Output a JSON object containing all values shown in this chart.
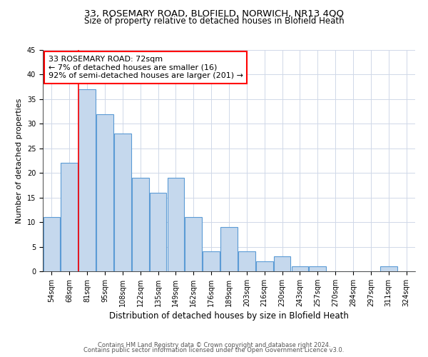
{
  "title1": "33, ROSEMARY ROAD, BLOFIELD, NORWICH, NR13 4QQ",
  "title2": "Size of property relative to detached houses in Blofield Heath",
  "xlabel": "Distribution of detached houses by size in Blofield Heath",
  "ylabel": "Number of detached properties",
  "categories": [
    "54sqm",
    "68sqm",
    "81sqm",
    "95sqm",
    "108sqm",
    "122sqm",
    "135sqm",
    "149sqm",
    "162sqm",
    "176sqm",
    "189sqm",
    "203sqm",
    "216sqm",
    "230sqm",
    "243sqm",
    "257sqm",
    "270sqm",
    "284sqm",
    "297sqm",
    "311sqm",
    "324sqm"
  ],
  "values": [
    11,
    22,
    37,
    32,
    28,
    19,
    16,
    19,
    11,
    4,
    9,
    4,
    2,
    3,
    1,
    1,
    0,
    0,
    0,
    1,
    0
  ],
  "bar_color": "#c5d8ed",
  "bar_edge_color": "#5b9bd5",
  "annotation_text_line1": "33 ROSEMARY ROAD: 72sqm",
  "annotation_text_line2": "← 7% of detached houses are smaller (16)",
  "annotation_text_line3": "92% of semi-detached houses are larger (201) →",
  "annotation_box_color": "white",
  "annotation_box_edge": "red",
  "red_line_x": 1.5,
  "ylim": [
    0,
    45
  ],
  "yticks": [
    0,
    5,
    10,
    15,
    20,
    25,
    30,
    35,
    40,
    45
  ],
  "footer1": "Contains HM Land Registry data © Crown copyright and database right 2024.",
  "footer2": "Contains public sector information licensed under the Open Government Licence v3.0.",
  "background_color": "#ffffff",
  "grid_color": "#d0d8e8",
  "title1_fontsize": 9.5,
  "title2_fontsize": 8.5,
  "ylabel_fontsize": 8,
  "xlabel_fontsize": 8.5,
  "tick_fontsize": 7,
  "footer_fontsize": 6,
  "ann_fontsize": 8
}
